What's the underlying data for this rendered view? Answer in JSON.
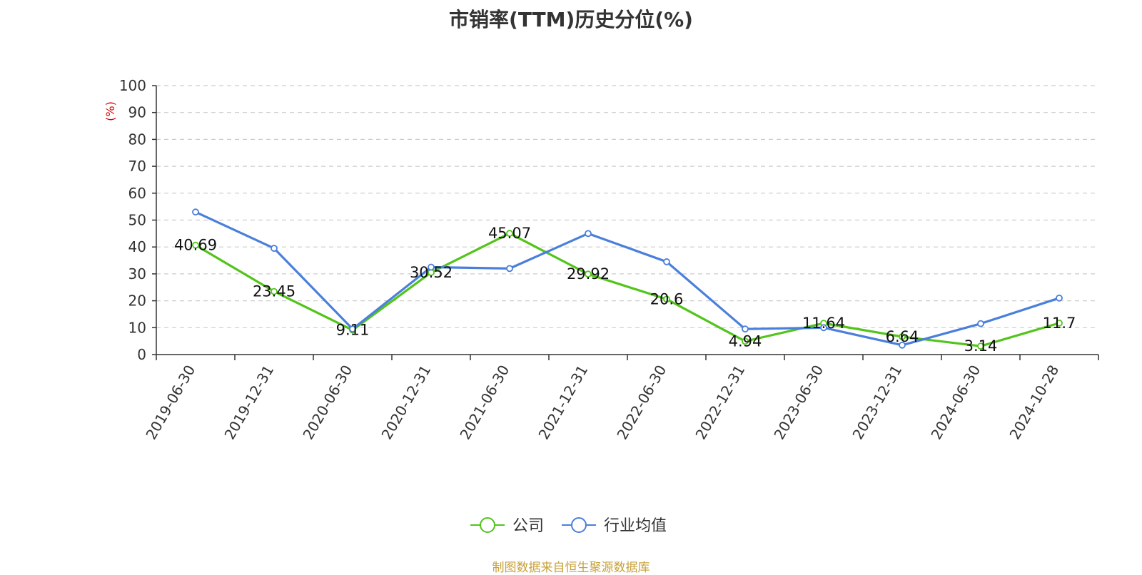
{
  "title": "市销率(TTM)历史分位(%)",
  "source_note": "制图数据来自恒生聚源数据库",
  "chart_data": {
    "type": "line",
    "title": "市销率(TTM)历史分位(%)",
    "ylabel": "(%)",
    "xlabel": "",
    "ylim": [
      0,
      100
    ],
    "yticks": [
      0,
      10,
      20,
      30,
      40,
      50,
      60,
      70,
      80,
      90,
      100
    ],
    "grid": true,
    "legend_position": "bottom-center",
    "categories": [
      "2019-06-30",
      "2019-12-31",
      "2020-06-30",
      "2020-12-31",
      "2021-06-30",
      "2021-12-31",
      "2022-06-30",
      "2022-12-31",
      "2023-06-30",
      "2023-12-31",
      "2024-06-30",
      "2024-10-28"
    ],
    "series": [
      {
        "name": "公司",
        "color": "#52c41a",
        "values": [
          40.69,
          23.45,
          9.11,
          30.52,
          45.07,
          29.92,
          20.6,
          4.94,
          11.64,
          6.64,
          3.14,
          11.7
        ],
        "labels": [
          "40.69",
          "23.45",
          "9.11",
          "30.52",
          "45.07",
          "29.92",
          "20.6",
          "4.94",
          "11.64",
          "6.64",
          "3.14",
          "11.7"
        ]
      },
      {
        "name": "行业均值",
        "color": "#4a7fdc",
        "values": [
          53,
          39.5,
          9.5,
          32.5,
          32,
          45,
          34.5,
          9.5,
          10,
          3.5,
          11.5,
          21
        ]
      }
    ]
  }
}
